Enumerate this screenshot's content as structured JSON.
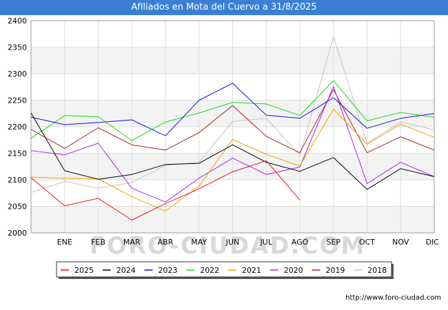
{
  "title": "Afiliados en Mota del Cuervo a 31/8/2025",
  "source": "http://www.foro-ciudad.com",
  "watermark": "FORO-CIUDAD.COM",
  "chart_data": {
    "type": "line",
    "title": "Afiliados en Mota del Cuervo a 31/8/2025",
    "categories": [
      "",
      "ENE",
      "FEB",
      "MAR",
      "ABR",
      "MAY",
      "JUN",
      "JUL",
      "AGO",
      "SEP",
      "OCT",
      "NOV",
      "DIC"
    ],
    "ylim": [
      2000,
      2400
    ],
    "yticks": [
      2000,
      2050,
      2100,
      2150,
      2200,
      2250,
      2300,
      2350,
      2400
    ],
    "grid": true,
    "legend_position": "bottom",
    "series": [
      {
        "name": "2025",
        "color": "#ee1111",
        "values": [
          2104,
          2051,
          2065,
          2024,
          2055,
          2083,
          2115,
          2136,
          2062,
          null,
          null,
          null,
          null
        ]
      },
      {
        "name": "2024",
        "color": "#000000",
        "values": [
          2226,
          2117,
          2101,
          2110,
          2129,
          2131,
          2166,
          2133,
          2116,
          2142,
          2082,
          2121,
          2106
        ]
      },
      {
        "name": "2023",
        "color": "#1010dd",
        "values": [
          2218,
          2204,
          2208,
          2213,
          2183,
          2250,
          2282,
          2222,
          2216,
          2255,
          2197,
          2216,
          2225
        ]
      },
      {
        "name": "2022",
        "color": "#11dd11",
        "values": [
          2178,
          2221,
          2219,
          2174,
          2209,
          2226,
          2246,
          2243,
          2221,
          2287,
          2211,
          2227,
          2218
        ]
      },
      {
        "name": "2021",
        "color": "#f5a000",
        "values": [
          2105,
          2103,
          2102,
          2068,
          2041,
          2088,
          2176,
          2148,
          2126,
          2233,
          2167,
          2205,
          2180
        ]
      },
      {
        "name": "2020",
        "color": "#aa22ee",
        "values": [
          2155,
          2147,
          2169,
          2084,
          2058,
          2103,
          2141,
          2110,
          2124,
          2276,
          2093,
          2133,
          2106
        ]
      },
      {
        "name": "2019",
        "color": "#aa2222",
        "values": [
          2195,
          2159,
          2198,
          2166,
          2156,
          2189,
          2240,
          2182,
          2151,
          2270,
          2151,
          2181,
          2156
        ]
      },
      {
        "name": "2018",
        "color": "#c4c4c4",
        "values": [
          2076,
          2097,
          2084,
          2095,
          2127,
          2133,
          2210,
          2216,
          2146,
          2370,
          2169,
          2209,
          2194
        ]
      }
    ]
  }
}
